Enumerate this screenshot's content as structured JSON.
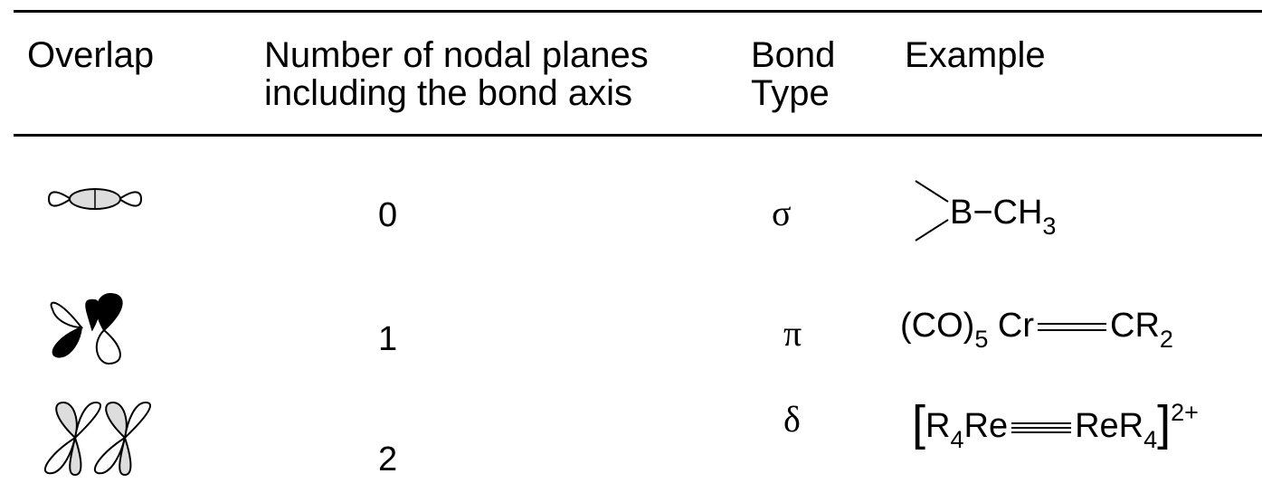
{
  "table": {
    "headers": [
      "Overlap",
      "Number of nodal planes including the bond axis",
      "Bond Type",
      "Example"
    ],
    "rows": [
      {
        "nodal_planes": "0",
        "bond_type": "σ",
        "example": [
          "B−CH",
          "3"
        ]
      },
      {
        "nodal_planes": "1",
        "bond_type": "π",
        "example": [
          "(CO)",
          "5",
          "Cr",
          "CR",
          "2"
        ]
      },
      {
        "nodal_planes": "2",
        "bond_type": "δ",
        "example": [
          "[",
          "R",
          "4",
          "Re",
          "ReR",
          "4",
          "]",
          "2+"
        ]
      }
    ]
  }
}
